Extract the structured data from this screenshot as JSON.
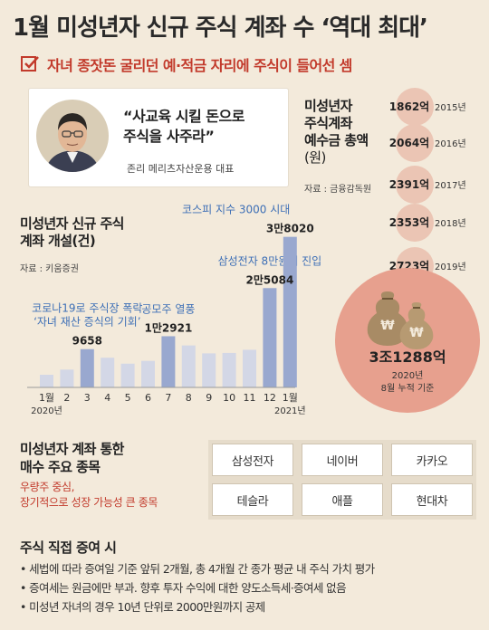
{
  "title": "1월 미성년자 신규 주식 계좌 수 ‘역대 최대’",
  "subtitle": "자녀 종잣돈 굴리던 예·적금 자리에 주식이 들어선 셈",
  "quote": {
    "line1": "“사교육 시킬 돈으로",
    "line2": "주식을 사주라”",
    "author": "존리 메리츠자산운용 대표"
  },
  "deposits": {
    "title_lines": [
      "미성년자",
      "주식계좌",
      "예수금 총액",
      "(원)"
    ],
    "source": "자료 : 금융감독원",
    "total_value": "3조1288억",
    "total_note_line1": "2020년",
    "total_note_line2": "8월 누적 기준",
    "colors": {
      "circle": "#ebc5b4",
      "big_circle": "#e7a08e",
      "bag": "#a88b65"
    }
  },
  "chart_title_lines": [
    "미성년자 신규 주식",
    "계좌 개설(건)"
  ],
  "chart_source": "자료 : 키움증권",
  "chart_data": [
    {
      "type": "bar",
      "title": "미성년자 신규 주식 계좌 개설(건)",
      "categories": [
        "1월",
        "2",
        "3",
        "4",
        "5",
        "6",
        "7",
        "8",
        "9",
        "10",
        "11",
        "12",
        "1월"
      ],
      "category_years": [
        "2020년",
        "",
        "",
        "",
        "",
        "",
        "",
        "",
        "",
        "",
        "",
        "",
        "2021년"
      ],
      "values": [
        3200,
        4500,
        9658,
        7500,
        6000,
        6700,
        12921,
        10600,
        8600,
        8700,
        9500,
        25084,
        38020
      ],
      "ylim": [
        0,
        40000
      ],
      "data_labels": [
        {
          "index": 2,
          "text": "9658"
        },
        {
          "index": 6,
          "text": "1만2921"
        },
        {
          "index": 11,
          "text": "2만5084"
        },
        {
          "index": 12,
          "text": "3만8020"
        }
      ],
      "annotations": [
        {
          "index": 2,
          "lines": [
            "코로나19로 주식장 폭락",
            "‘자녀 재산 증식의 기회’"
          ]
        },
        {
          "index": 6,
          "lines": [
            "공모주 열풍"
          ]
        },
        {
          "index": 11,
          "lines": [
            "삼성전자 8만원대 진입"
          ]
        },
        {
          "index": 12,
          "lines": [
            "코스피 지수 3000 시대"
          ]
        }
      ],
      "highlighted_indices": [
        2,
        6,
        11,
        12
      ],
      "colors": {
        "bar": "#d3d7e6",
        "bar_highlight": "#99a8cf",
        "annotation": "#3d6fb6"
      }
    },
    {
      "type": "table",
      "title": "미성년자 주식계좌 예수금 총액(원)",
      "categories": [
        "2015년",
        "2016년",
        "2017년",
        "2018년",
        "2019년"
      ],
      "values": [
        1862,
        2064,
        2391,
        2353,
        2723
      ],
      "unit": "억"
    }
  ],
  "buy": {
    "title_lines": [
      "미성년자 계좌 통한",
      "매수 주요 종목"
    ],
    "note_lines": [
      "우량주 중심,",
      "장기적으로 성장 가능성 큰 종목"
    ],
    "stocks": [
      "삼성전자",
      "네이버",
      "카카오",
      "테슬라",
      "애플",
      "현대차"
    ]
  },
  "gift": {
    "title": "주식 직접 증여 시",
    "items": [
      "• 세법에 따라 증여일 기준 앞뒤 2개월, 총 4개월 간 종가 평균 내 주식 가치 평가",
      "• 증여세는 원금에만 부과. 향후 투자 수익에 대한 양도소득세·증여세 없음",
      "• 미성년 자녀의 경우 10년 단위로 2000만원까지 공제"
    ]
  }
}
